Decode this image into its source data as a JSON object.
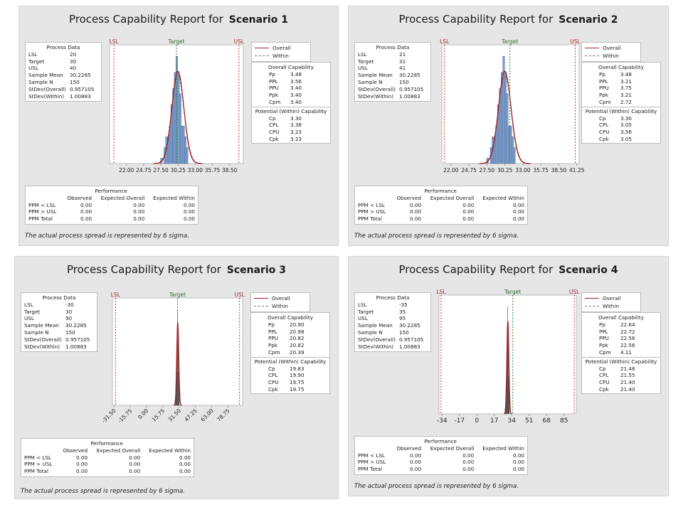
{
  "legend": {
    "overall": "Overall",
    "within": "Within"
  },
  "labels": {
    "title_prefix": "Process Capability Report for",
    "process_data": "Process Data",
    "overall_capability": "Overall Capability",
    "potential_capability": "Potential (Within) Capability",
    "performance": "Performance",
    "lsl_marker": "LSL",
    "target_marker": "Target",
    "usl_marker": "USL",
    "footnote": "The actual process spread is represented by 6 sigma."
  },
  "colors": {
    "bar_fill": "#7b9cc9",
    "bar_stroke": "#4a6a9a",
    "dense_fill": "#4a4a4a",
    "overall_curve": "#a11f24",
    "lsl_usl": "#d9363e",
    "target": "#2e8b3f",
    "lsl_label": "#9e2a2f",
    "target_label": "#2e6b36"
  },
  "chart_data": [
    {
      "type": "bar",
      "title": "Process Capability Report for Scenario 1",
      "scenario": "Scenario 1",
      "process_data": [
        [
          "LSL",
          "20"
        ],
        [
          "Target",
          "30"
        ],
        [
          "USL",
          "40"
        ],
        [
          "Sample Mean",
          "30.2285"
        ],
        [
          "Sample N",
          "150"
        ],
        [
          "StDev(Overall)",
          "0.957105"
        ],
        [
          "StDev(Within)",
          "1.00883"
        ]
      ],
      "overall_capability": [
        [
          "Pp",
          "3.48"
        ],
        [
          "PPL",
          "3.56"
        ],
        [
          "PPU",
          "3.40"
        ],
        [
          "Ppk",
          "3.40"
        ],
        [
          "Cpm",
          "3.40"
        ]
      ],
      "potential_capability": [
        [
          "Cp",
          "3.30"
        ],
        [
          "CPL",
          "3.38"
        ],
        [
          "CPU",
          "3.23"
        ],
        [
          "Cpk",
          "3.23"
        ]
      ],
      "performance": {
        "columns": [
          "",
          "Observed",
          "Expected Overall",
          "Expected Within"
        ],
        "rows": [
          [
            "PPM < LSL",
            "0.00",
            "0.00",
            "0.00"
          ],
          [
            "PPM > USL",
            "0.00",
            "0.00",
            "0.00"
          ],
          [
            "PPM Total",
            "0.00",
            "0.00",
            "0.00"
          ]
        ]
      },
      "x_ticks": [
        "22.00",
        "24.75",
        "27.50",
        "30.25",
        "33.00",
        "35.75",
        "38.50"
      ],
      "xlim": [
        19.3,
        40.7
      ],
      "lsl": 20,
      "target": 30,
      "usl": 40,
      "mean": 30.2285,
      "sd_overall": 0.957105,
      "sd_within": 1.00883,
      "tick_rotated": false,
      "dense": false,
      "histogram": {
        "bin_start": 27.45,
        "bin_width": 0.275,
        "counts": [
          1,
          0,
          3,
          5,
          5,
          7,
          11,
          14,
          17,
          20,
          17,
          13,
          7,
          7,
          5,
          3,
          0,
          0,
          0,
          0
        ]
      }
    },
    {
      "type": "bar",
      "title": "Process Capability Report for Scenario 2",
      "scenario": "Scenario 2",
      "process_data": [
        [
          "LSL",
          "21"
        ],
        [
          "Target",
          "31"
        ],
        [
          "USL",
          "41"
        ],
        [
          "Sample Mean",
          "30.2285"
        ],
        [
          "Sample N",
          "150"
        ],
        [
          "StDev(Overall)",
          "0.957105"
        ],
        [
          "StDev(Within)",
          "1.00883"
        ]
      ],
      "overall_capability": [
        [
          "Pp",
          "3.48"
        ],
        [
          "PPL",
          "3.21"
        ],
        [
          "PPU",
          "3.75"
        ],
        [
          "Ppk",
          "3.21"
        ],
        [
          "Cpm",
          "2.72"
        ]
      ],
      "potential_capability": [
        [
          "Cp",
          "3.30"
        ],
        [
          "CPL",
          "3.05"
        ],
        [
          "CPU",
          "3.56"
        ],
        [
          "Cpk",
          "3.05"
        ]
      ],
      "performance": {
        "columns": [
          "",
          "Observed",
          "Expected Overall",
          "Expected Within"
        ],
        "rows": [
          [
            "PPM < LSL",
            "0.00",
            "0.00",
            "0.00"
          ],
          [
            "PPM > USL",
            "0.00",
            "0.00",
            "0.00"
          ],
          [
            "PPM Total",
            "0.00",
            "0.00",
            "0.00"
          ]
        ]
      },
      "x_ticks": [
        "22.00",
        "24.75",
        "27.50",
        "30.25",
        "33.00",
        "35.75",
        "38.50",
        "41.25"
      ],
      "xlim": [
        20.6,
        41.6
      ],
      "lsl": 21,
      "target": 31,
      "usl": 41,
      "mean": 30.2285,
      "sd_overall": 0.957105,
      "sd_within": 1.00883,
      "tick_rotated": false,
      "dense": false,
      "histogram": {
        "bin_start": 27.45,
        "bin_width": 0.275,
        "counts": [
          1,
          0,
          3,
          5,
          5,
          7,
          11,
          14,
          17,
          20,
          17,
          13,
          7,
          7,
          5,
          3,
          0,
          0,
          0,
          0
        ]
      }
    },
    {
      "type": "bar",
      "title": "Process Capability Report for Scenario 3",
      "scenario": "Scenario 3",
      "process_data": [
        [
          "LSL",
          "-30"
        ],
        [
          "Target",
          "30"
        ],
        [
          "USL",
          "90"
        ],
        [
          "Sample Mean",
          "30.2285"
        ],
        [
          "Sample N",
          "150"
        ],
        [
          "StDev(Overall)",
          "0.957105"
        ],
        [
          "StDev(Within)",
          "1.00883"
        ]
      ],
      "overall_capability": [
        [
          "Pp",
          "20.90"
        ],
        [
          "PPL",
          "20.98"
        ],
        [
          "PPU",
          "20.82"
        ],
        [
          "Ppk",
          "20.82"
        ],
        [
          "Cpm",
          "20.39"
        ]
      ],
      "potential_capability": [
        [
          "Cp",
          "19.83"
        ],
        [
          "CPL",
          "19.90"
        ],
        [
          "CPU",
          "19.75"
        ],
        [
          "Cpk",
          "19.75"
        ]
      ],
      "performance": {
        "columns": [
          "",
          "Observed",
          "Expected Overall",
          "Expected Within"
        ],
        "rows": [
          [
            "PPM < LSL",
            "0.00",
            "0.00",
            "0.00"
          ],
          [
            "PPM > USL",
            "0.00",
            "0.00",
            "0.00"
          ],
          [
            "PPM Total",
            "0.00",
            "0.00",
            "0.00"
          ]
        ]
      },
      "x_ticks": [
        "-31.50",
        "-15.75",
        "0.00",
        "15.75",
        "31.50",
        "47.25",
        "63.00",
        "78.75"
      ],
      "xlim": [
        -33,
        93
      ],
      "lsl": -30,
      "target": 30,
      "usl": 90,
      "mean": 30.2285,
      "sd_overall": 0.957105,
      "sd_within": 1.00883,
      "tick_rotated": true,
      "dense": true,
      "histogram": {
        "bin_start": 27.45,
        "bin_width": 0.275,
        "counts": [
          1,
          0,
          3,
          5,
          5,
          7,
          11,
          14,
          17,
          20,
          17,
          13,
          7,
          7,
          5,
          3,
          0,
          0,
          0,
          0
        ]
      }
    },
    {
      "type": "bar",
      "title": "Process Capability Report for Scenario 4",
      "scenario": "Scenario 4",
      "process_data": [
        [
          "LSL",
          "-35"
        ],
        [
          "Target",
          "35"
        ],
        [
          "USL",
          "95"
        ],
        [
          "Sample Mean",
          "30.2285"
        ],
        [
          "Sample N",
          "150"
        ],
        [
          "StDev(Overall)",
          "0.957105"
        ],
        [
          "StDev(Within)",
          "1.00883"
        ]
      ],
      "overall_capability": [
        [
          "Pp",
          "22.64"
        ],
        [
          "PPL",
          "22.72"
        ],
        [
          "PPU",
          "22.56"
        ],
        [
          "Ppk",
          "22.56"
        ],
        [
          "Cpm",
          "4.11"
        ]
      ],
      "potential_capability": [
        [
          "Cp",
          "21.48"
        ],
        [
          "CPL",
          "21.55"
        ],
        [
          "CPU",
          "21.40"
        ],
        [
          "Cpk",
          "21.40"
        ]
      ],
      "performance": {
        "columns": [
          "",
          "Observed",
          "Expected Overall",
          "Expected Within"
        ],
        "rows": [
          [
            "PPM < LSL",
            "0.00",
            "0.00",
            "0.00"
          ],
          [
            "PPM > USL",
            "0.00",
            "0.00",
            "0.00"
          ],
          [
            "PPM Total",
            "0.00",
            "0.00",
            "0.00"
          ]
        ]
      },
      "x_ticks": [
        "-34",
        "-17",
        "0",
        "17",
        "34",
        "51",
        "68",
        "85"
      ],
      "xlim": [
        -37,
        97
      ],
      "lsl": -35,
      "target": 35,
      "usl": 95,
      "mean": 30.2285,
      "sd_overall": 0.957105,
      "sd_within": 1.00883,
      "tick_rotated": false,
      "dense": true,
      "histogram": {
        "bin_start": 27.45,
        "bin_width": 0.275,
        "counts": [
          1,
          0,
          3,
          5,
          5,
          7,
          11,
          14,
          17,
          20,
          17,
          13,
          7,
          7,
          5,
          3,
          0,
          0,
          0,
          0
        ]
      }
    }
  ]
}
